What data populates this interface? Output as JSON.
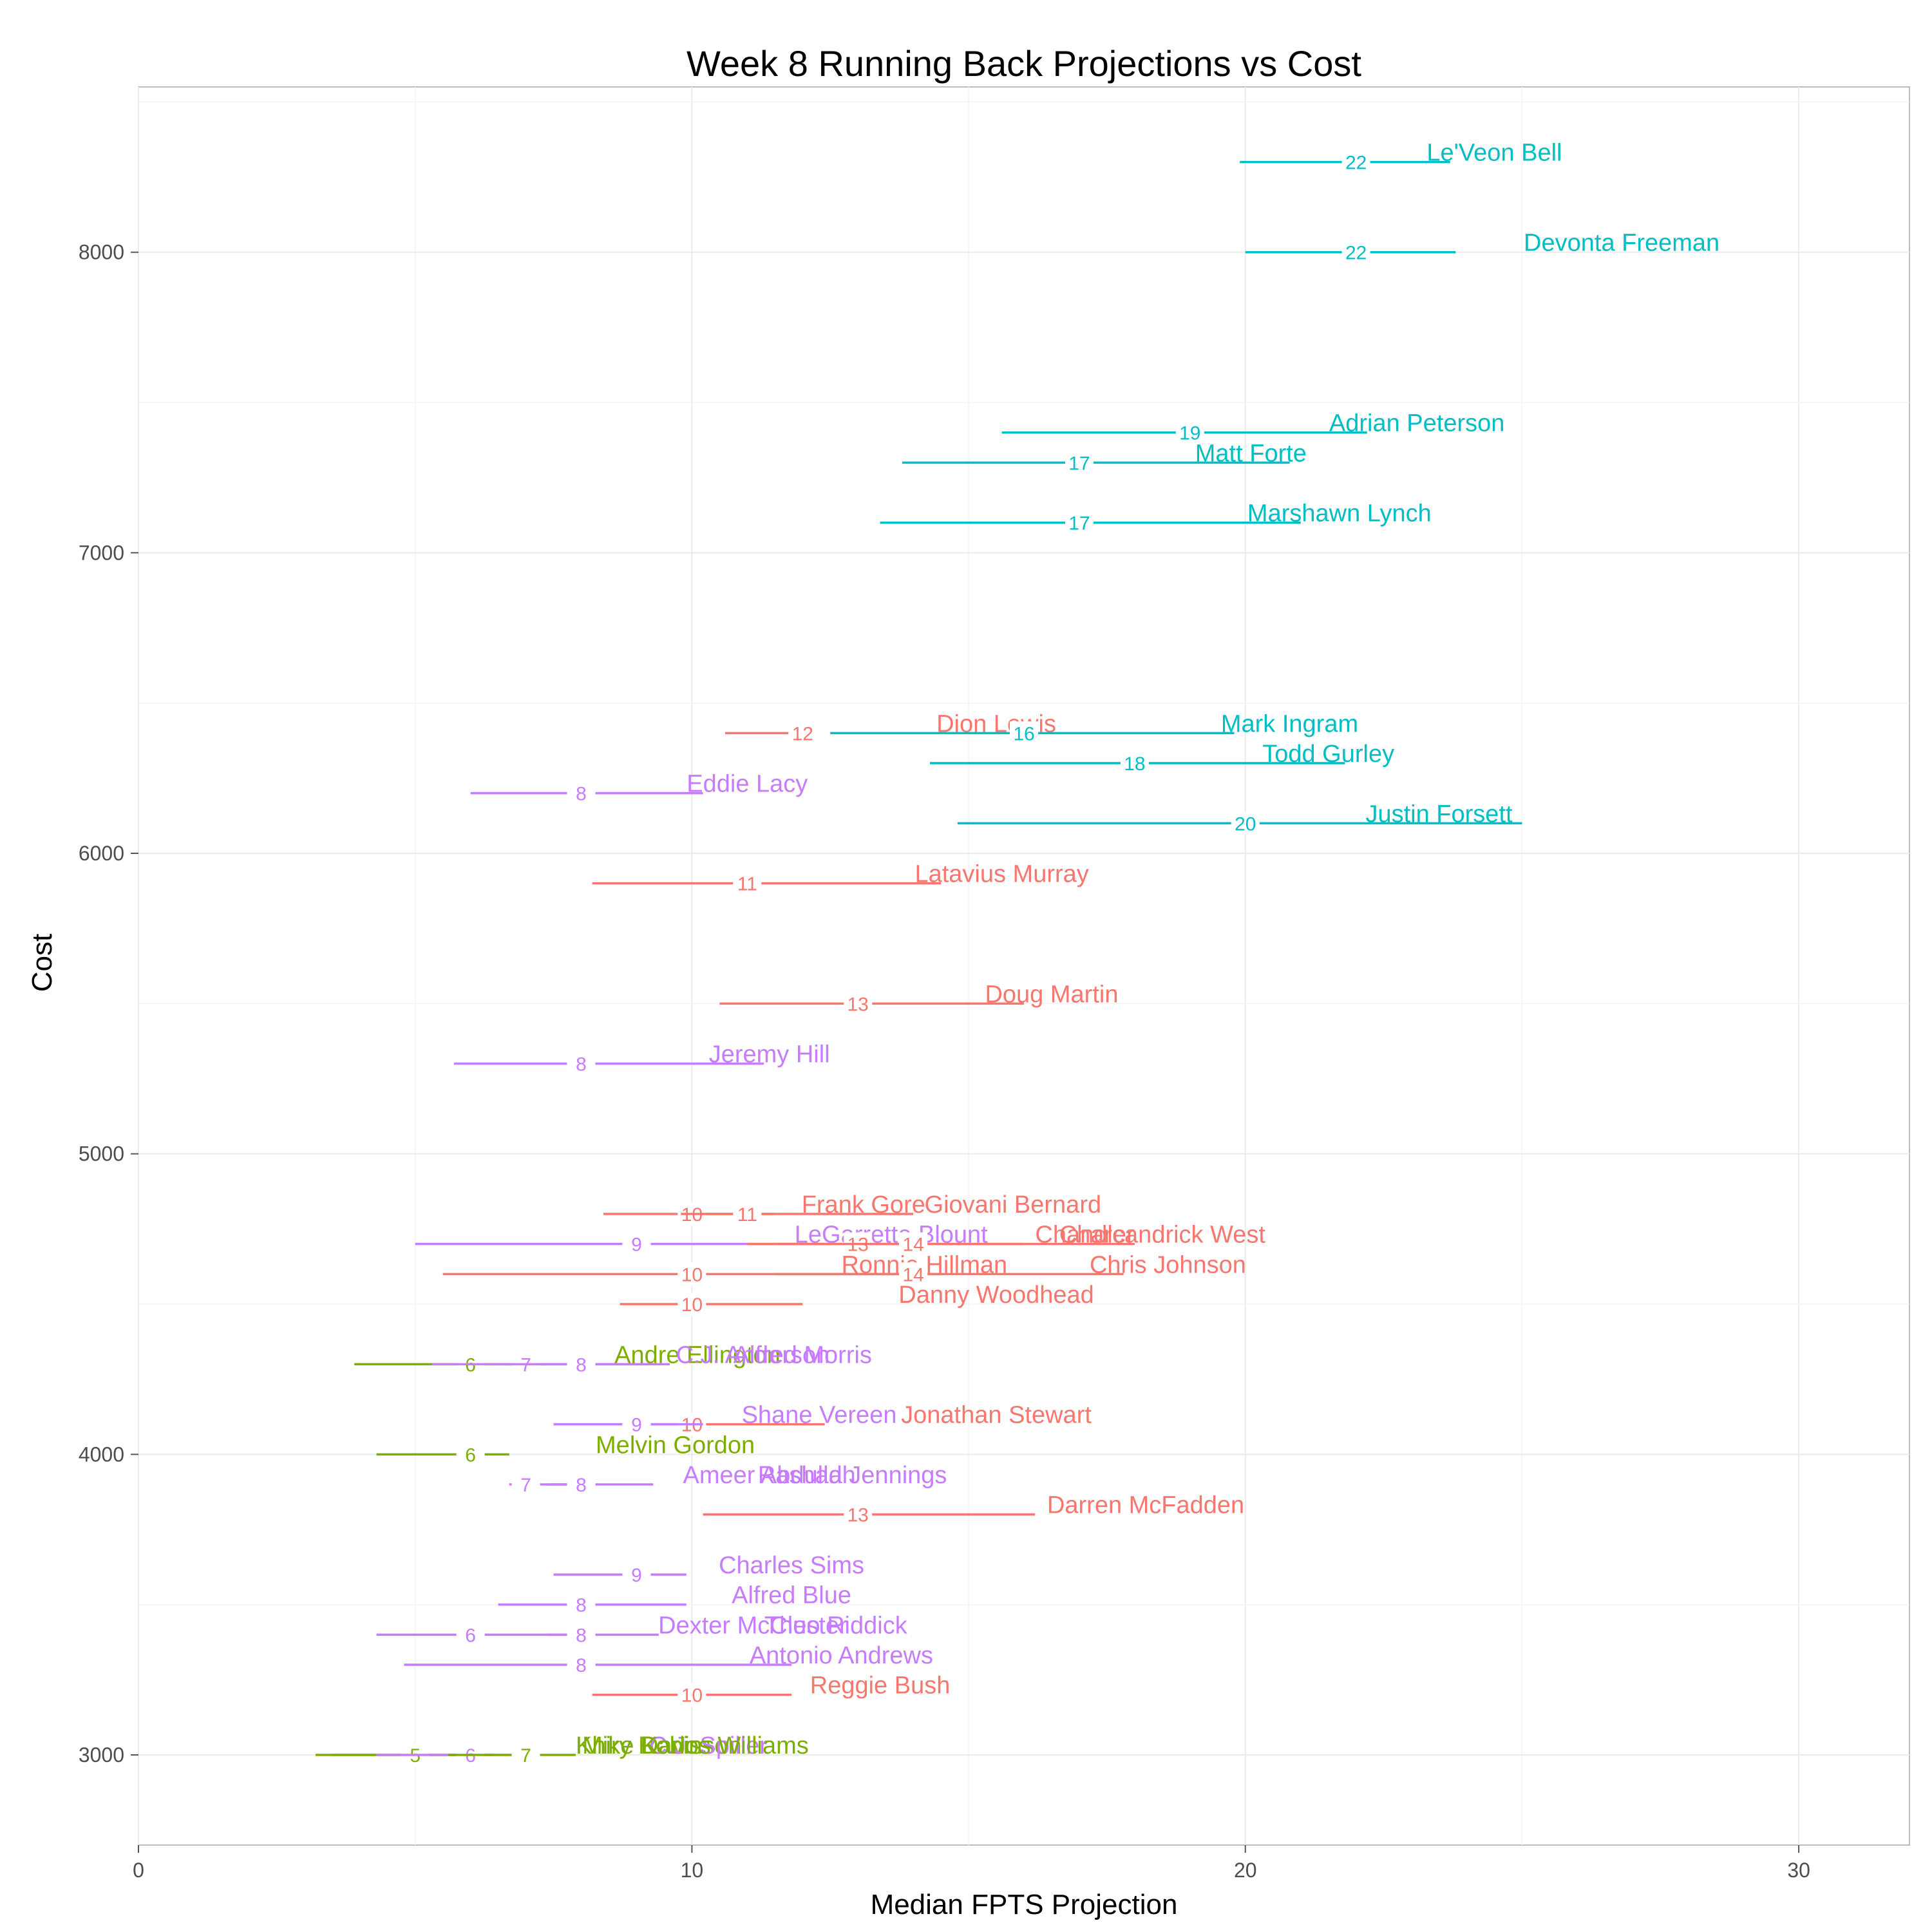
{
  "chart_data": {
    "type": "scatter",
    "title": "Week 8 Running Back Projections vs Cost",
    "xlabel": "Median FPTS Projection",
    "ylabel": "Cost",
    "xlim": [
      0,
      32
    ],
    "ylim": [
      2700,
      8550
    ],
    "x_ticks": [
      0,
      10,
      20,
      30
    ],
    "y_ticks": [
      3000,
      4000,
      5000,
      6000,
      7000,
      8000
    ],
    "grid": true,
    "legend": "none",
    "series_colors": {
      "1": "#f8766d",
      "2": "#7cae00",
      "3": "#00bfc4",
      "4": "#c77cff"
    },
    "points": [
      {
        "player": "Le'Veon Bell",
        "cost": 8300,
        "low": 19.9,
        "median": 22,
        "high": 23.7,
        "label_x": 24.5,
        "median_label": "22",
        "group": "3"
      },
      {
        "player": "Devonta Freeman",
        "cost": 8000,
        "low": 20,
        "median": 22,
        "high": 23.8,
        "label_x": 26.8,
        "median_label": "22",
        "group": "3"
      },
      {
        "player": "Adrian Peterson",
        "cost": 7400,
        "low": 15.6,
        "median": 19,
        "high": 22.2,
        "label_x": 23.1,
        "median_label": "19",
        "group": "3"
      },
      {
        "player": "Matt Forte",
        "cost": 7300,
        "low": 13.8,
        "median": 17,
        "high": 20.8,
        "label_x": 20.1,
        "median_label": "17",
        "group": "3"
      },
      {
        "player": "Marshawn Lynch",
        "cost": 7100,
        "low": 13.4,
        "median": 17,
        "high": 21,
        "label_x": 21.7,
        "median_label": "17",
        "group": "3"
      },
      {
        "player": "Dion Lewis",
        "cost": 6400,
        "low": 10.6,
        "median": 12,
        "high": 12.2,
        "label_x": 15.5,
        "median_label": "12",
        "group": "1"
      },
      {
        "player": "Mark Ingram",
        "cost": 6400,
        "low": 12.5,
        "median": 16,
        "high": 19.8,
        "label_x": 20.8,
        "median_label": "16",
        "group": "3"
      },
      {
        "player": "Todd Gurley",
        "cost": 6300,
        "low": 14.3,
        "median": 18,
        "high": 21.8,
        "label_x": 21.5,
        "median_label": "18",
        "group": "3"
      },
      {
        "player": "Eddie Lacy",
        "cost": 6200,
        "low": 6,
        "median": 8,
        "high": 10.2,
        "label_x": 11,
        "median_label": "8",
        "group": "4"
      },
      {
        "player": "Justin Forsett",
        "cost": 6100,
        "low": 14.8,
        "median": 20,
        "high": 25,
        "label_x": 23.5,
        "median_label": "20",
        "group": "3"
      },
      {
        "player": "Latavius Murray",
        "cost": 5900,
        "low": 8.2,
        "median": 11,
        "high": 14.5,
        "label_x": 15.6,
        "median_label": "11",
        "group": "1"
      },
      {
        "player": "Doug Martin",
        "cost": 5500,
        "low": 10.5,
        "median": 13,
        "high": 16,
        "label_x": 16.5,
        "median_label": "13",
        "group": "1"
      },
      {
        "player": "Jeremy Hill",
        "cost": 5300,
        "low": 5.7,
        "median": 8,
        "high": 11.3,
        "label_x": 11.4,
        "median_label": "8",
        "group": "4"
      },
      {
        "player": "Frank Gore",
        "cost": 4800,
        "low": 8.4,
        "median": 10,
        "high": 11.5,
        "label_x": 13.1,
        "median_label": "10",
        "group": "1"
      },
      {
        "player": "Giovani Bernard",
        "cost": 4800,
        "low": 9.8,
        "median": 11,
        "high": 14,
        "label_x": 15.8,
        "median_label": "11",
        "group": "1"
      },
      {
        "player": "LeGarrette Blount",
        "cost": 4700,
        "low": 5,
        "median": 9,
        "high": 12.6,
        "label_x": 13.6,
        "median_label": "9",
        "group": "4"
      },
      {
        "player": "Chandler",
        "cost": 4700,
        "low": 11,
        "median": 13,
        "high": 16,
        "label_x": 17.1,
        "median_label": "13",
        "group": "1"
      },
      {
        "player": "Charcandrick West",
        "cost": 4700,
        "low": 11.5,
        "median": 14,
        "high": 18,
        "label_x": 18.5,
        "median_label": "14",
        "group": "1"
      },
      {
        "player": "Ronnie Hillman",
        "cost": 4600,
        "low": 5.5,
        "median": 10,
        "high": 14.5,
        "label_x": 14.2,
        "median_label": "10",
        "group": "1"
      },
      {
        "player": "Chris Johnson",
        "cost": 4600,
        "low": 11.5,
        "median": 14,
        "high": 17.8,
        "label_x": 18.6,
        "median_label": "14",
        "group": "1"
      },
      {
        "player": "Danny Woodhead",
        "cost": 4500,
        "low": 8.7,
        "median": 10,
        "high": 12,
        "label_x": 15.5,
        "median_label": "10",
        "group": "1"
      },
      {
        "player": "Andre Ellington",
        "cost": 4300,
        "low": 3.9,
        "median": 6,
        "high": 7.4,
        "label_x": 10.1,
        "median_label": "6",
        "group": "2"
      },
      {
        "player": "C.J. Anderson",
        "cost": 4300,
        "low": 5.3,
        "median": 7,
        "high": 9.2,
        "label_x": 11.1,
        "median_label": "7",
        "group": "4"
      },
      {
        "player": "Alfred Morris",
        "cost": 4300,
        "low": 6.6,
        "median": 8,
        "high": 9.6,
        "label_x": 12,
        "median_label": "8",
        "group": "4"
      },
      {
        "player": "Jonathan Stewart",
        "cost": 4100,
        "low": 9,
        "median": 10,
        "high": 12.4,
        "label_x": 15.5,
        "median_label": "10",
        "group": "1"
      },
      {
        "player": "Shane Vereen",
        "cost": 4100,
        "low": 7.5,
        "median": 9,
        "high": 10.2,
        "label_x": 12.3,
        "median_label": "9",
        "group": "4"
      },
      {
        "player": "Melvin Gordon",
        "cost": 4000,
        "low": 4.3,
        "median": 6,
        "high": 6.7,
        "label_x": 9.7,
        "median_label": "6",
        "group": "2"
      },
      {
        "player": "Ameer Abdullah",
        "cost": 3900,
        "low": 6.7,
        "median": 7,
        "high": 8.2,
        "label_x": 11.4,
        "median_label": "7",
        "group": "4"
      },
      {
        "player": "Rashad Jennings",
        "cost": 3900,
        "low": 7.4,
        "median": 8,
        "high": 9.3,
        "label_x": 12.9,
        "median_label": "8",
        "group": "4"
      },
      {
        "player": "Darren McFadden",
        "cost": 3800,
        "low": 10.2,
        "median": 13,
        "high": 16.2,
        "label_x": 18.2,
        "median_label": "13",
        "group": "1"
      },
      {
        "player": "Charles Sims",
        "cost": 3600,
        "low": 7.5,
        "median": 9,
        "high": 9.9,
        "label_x": 11.8,
        "median_label": "9",
        "group": "4"
      },
      {
        "player": "Alfred Blue",
        "cost": 3500,
        "low": 6.5,
        "median": 8,
        "high": 9.9,
        "label_x": 11.8,
        "median_label": "8",
        "group": "4"
      },
      {
        "player": "Dexter McCluster",
        "cost": 3400,
        "low": 4.3,
        "median": 6,
        "high": 8.2,
        "label_x": 11.1,
        "median_label": "6",
        "group": "4"
      },
      {
        "player": "Theo Riddick",
        "cost": 3400,
        "low": 7.4,
        "median": 8,
        "high": 9.4,
        "label_x": 12.6,
        "median_label": "8",
        "group": "4"
      },
      {
        "player": "Antonio Andrews",
        "cost": 3300,
        "low": 4.8,
        "median": 8,
        "high": 11.8,
        "label_x": 12.7,
        "median_label": "8",
        "group": "4"
      },
      {
        "player": "Reggie Bush",
        "cost": 3200,
        "low": 8.2,
        "median": 10,
        "high": 11.8,
        "label_x": 13.4,
        "median_label": "10",
        "group": "1"
      },
      {
        "player": "Mike Davis",
        "cost": 3000,
        "low": 3.2,
        "median": 5,
        "high": 6.2,
        "label_x": 9.1,
        "median_label": "5",
        "group": "2"
      },
      {
        "player": "Khiry Robinson",
        "cost": 3000,
        "low": 3.5,
        "median": 5,
        "high": 6.4,
        "label_x": 9.4,
        "median_label": "5",
        "group": "2"
      },
      {
        "player": "C.J. Spiller",
        "cost": 3000,
        "low": 4.3,
        "median": 6,
        "high": 6.9,
        "label_x": 10.3,
        "median_label": "6",
        "group": "4"
      },
      {
        "player": "Karlos Williams",
        "cost": 3000,
        "low": 5.6,
        "median": 7,
        "high": 7.9,
        "label_x": 10.6,
        "median_label": "7",
        "group": "2"
      }
    ]
  }
}
